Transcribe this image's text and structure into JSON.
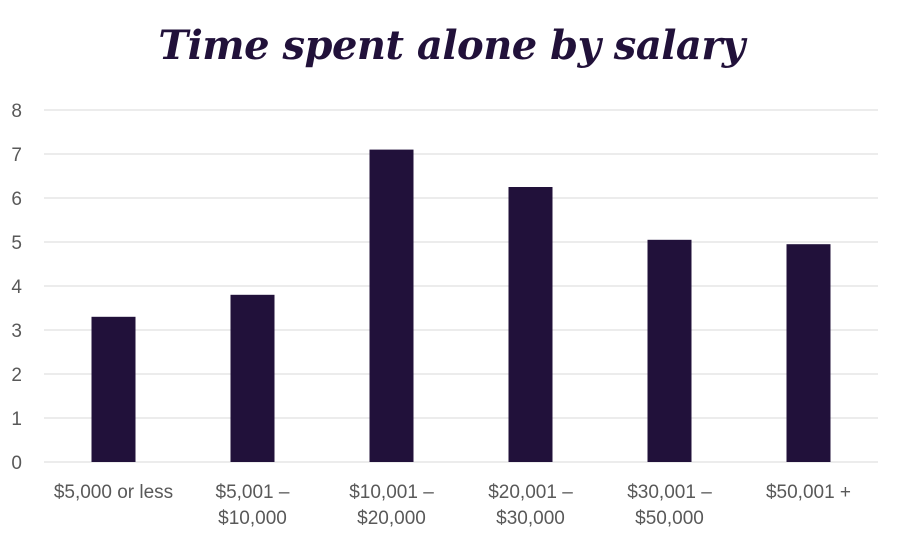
{
  "chart_data": {
    "type": "bar",
    "title": "Time spent alone by salary",
    "xlabel": "",
    "ylabel": "",
    "categories": [
      [
        "$5,000 or less"
      ],
      [
        "$5,001 –",
        "$10,000"
      ],
      [
        "$10,001 –",
        "$20,000"
      ],
      [
        "$20,001 –",
        "$30,000"
      ],
      [
        "$30,001 –",
        "$50,000"
      ],
      [
        "$50,001 +"
      ]
    ],
    "values": [
      3.3,
      3.8,
      7.1,
      6.25,
      5.05,
      4.95
    ],
    "ylim": [
      0,
      8
    ],
    "yticks": [
      "0",
      "1",
      "2",
      "3",
      "4",
      "5",
      "6",
      "7",
      "8"
    ],
    "grid": true,
    "legend": "none",
    "bar_color": "#21113a",
    "grid_color": "#d9d9d9"
  }
}
